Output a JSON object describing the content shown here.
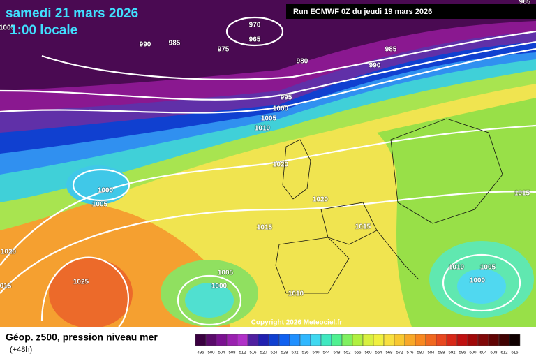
{
  "header": {
    "date": "samedi 21 mars 2026",
    "time": "1:00 locale",
    "run": "Run ECMWF 0Z du jeudi 19 mars 2026"
  },
  "map": {
    "isobar_labels": [
      "1005",
      "970",
      "965",
      "990",
      "985",
      "975",
      "985",
      "980",
      "990",
      "995",
      "1000",
      "1005",
      "1010",
      "1020",
      "1000",
      "1005",
      "1020",
      "1015",
      "1015",
      "1015",
      "1020",
      "1025",
      "1005",
      "1000",
      "1010",
      "1010",
      "1005",
      "1000",
      "015",
      "985"
    ],
    "copyright": "Copyright 2026 Meteociel.fr"
  },
  "legend": {
    "title": "Géop. z500, pression niveau mer",
    "lead": "(+48h)",
    "scale": [
      "496",
      "500",
      "504",
      "508",
      "512",
      "516",
      "520",
      "524",
      "528",
      "532",
      "536",
      "540",
      "544",
      "548",
      "552",
      "556",
      "560",
      "564",
      "568",
      "572",
      "576",
      "580",
      "584",
      "588",
      "592",
      "596",
      "600",
      "604",
      "608",
      "612",
      "616"
    ],
    "colors": [
      "#3a0040",
      "#5a0a6a",
      "#7a1090",
      "#9a20b0",
      "#b030c8",
      "#5020a0",
      "#2020b0",
      "#1040d0",
      "#1060f0",
      "#2090ff",
      "#30b8ff",
      "#40d8f0",
      "#40e8c0",
      "#50f090",
      "#80f060",
      "#b0f040",
      "#d8f040",
      "#f0f040",
      "#f8e040",
      "#f8c830",
      "#f8a828",
      "#f88820",
      "#f06820",
      "#e84820",
      "#d82818",
      "#c01010",
      "#a00808",
      "#800808",
      "#600404",
      "#400202",
      "#100000"
    ]
  }
}
